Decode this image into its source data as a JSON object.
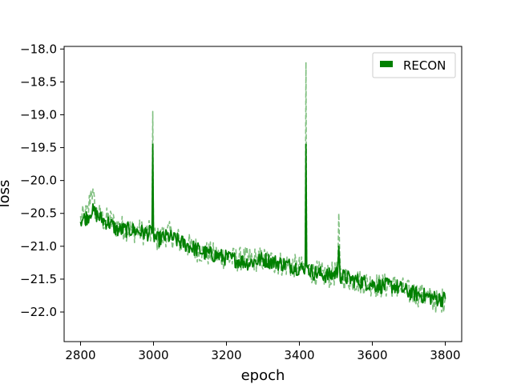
{
  "chart_data": {
    "type": "line",
    "title": "",
    "xlabel": "epoch",
    "ylabel": "loss",
    "xlim": [
      2755,
      3845
    ],
    "ylim": [
      -22.45,
      -17.96
    ],
    "xticks": [
      2800,
      3000,
      3200,
      3400,
      3600,
      3800
    ],
    "xtick_labels": [
      "2800",
      "3000",
      "3200",
      "3400",
      "3600",
      "3800"
    ],
    "yticks": [
      -18.0,
      -18.5,
      -19.0,
      -19.5,
      -20.0,
      -20.5,
      -21.0,
      -21.5,
      -22.0
    ],
    "ytick_labels": [
      "−18.0",
      "−18.5",
      "−19.0",
      "−19.5",
      "−20.0",
      "−20.5",
      "−21.0",
      "−21.5",
      "−22.0"
    ],
    "grid": false,
    "legend": {
      "position": "upper-right",
      "entries": [
        {
          "label": "RECON",
          "color": "#008000"
        }
      ]
    },
    "series": [
      {
        "name": "RECON",
        "style": "solid",
        "color": "#008000",
        "opacity": 1.0,
        "x": [
          2800,
          2820,
          2830,
          2840,
          2860,
          2880,
          2900,
          2940,
          2980,
          2996,
          2998,
          3000,
          3002,
          3010,
          3040,
          3080,
          3100,
          3140,
          3180,
          3220,
          3260,
          3300,
          3340,
          3380,
          3410,
          3416,
          3418,
          3420,
          3424,
          3440,
          3480,
          3505,
          3508,
          3512,
          3540,
          3580,
          3620,
          3660,
          3700,
          3740,
          3780,
          3800
        ],
        "y": [
          -20.6,
          -20.55,
          -20.45,
          -20.5,
          -20.6,
          -20.65,
          -20.75,
          -20.75,
          -20.8,
          -20.8,
          -19.45,
          -20.8,
          -20.85,
          -20.9,
          -20.85,
          -20.95,
          -21.0,
          -21.1,
          -21.15,
          -21.2,
          -21.25,
          -21.2,
          -21.25,
          -21.3,
          -21.35,
          -21.3,
          -19.45,
          -21.3,
          -21.35,
          -21.4,
          -21.45,
          -21.4,
          -21.0,
          -21.45,
          -21.5,
          -21.55,
          -21.6,
          -21.6,
          -21.7,
          -21.75,
          -21.8,
          -21.8
        ]
      },
      {
        "name": "RECON",
        "style": "dashed",
        "color": "#008000",
        "opacity": 0.5,
        "x": [
          2800,
          2820,
          2830,
          2840,
          2860,
          2880,
          2900,
          2940,
          2980,
          2996,
          2998,
          3000,
          3002,
          3010,
          3040,
          3080,
          3100,
          3140,
          3180,
          3220,
          3260,
          3300,
          3340,
          3380,
          3410,
          3416,
          3418,
          3420,
          3424,
          3440,
          3480,
          3505,
          3508,
          3512,
          3540,
          3580,
          3620,
          3660,
          3700,
          3740,
          3780,
          3800
        ],
        "y": [
          -20.6,
          -20.5,
          -20.1,
          -20.45,
          -20.6,
          -20.6,
          -20.7,
          -20.75,
          -20.8,
          -20.8,
          -18.95,
          -20.8,
          -20.85,
          -20.9,
          -20.8,
          -20.95,
          -21.0,
          -21.1,
          -21.15,
          -21.2,
          -21.2,
          -21.2,
          -21.25,
          -21.3,
          -21.35,
          -21.3,
          -18.2,
          -21.3,
          -21.35,
          -21.4,
          -21.45,
          -21.4,
          -20.5,
          -21.45,
          -21.5,
          -21.55,
          -21.6,
          -21.6,
          -21.7,
          -21.75,
          -21.85,
          -21.8
        ]
      }
    ],
    "noise_amplitude_loss": 0.12
  }
}
